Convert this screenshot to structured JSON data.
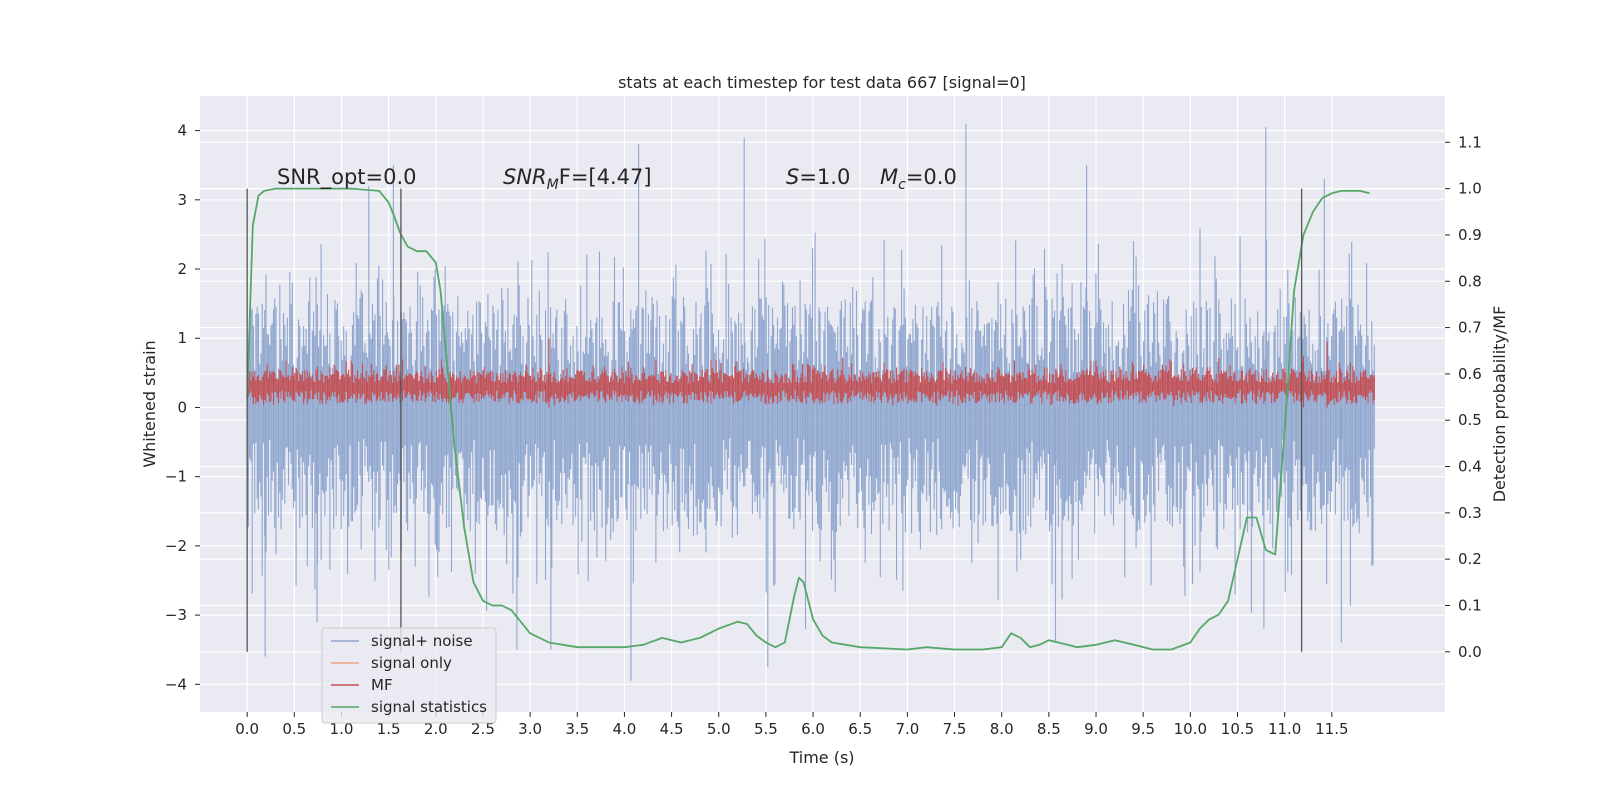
{
  "chart_data": {
    "type": "line",
    "title": "stats at each timestep for test data 667 [signal=0]",
    "xlabel": "Time (s)",
    "ylabel": "Whitened strain",
    "ylabel_right": "Detection probability/MF",
    "xlim": [
      -0.5,
      12.7
    ],
    "ylim": [
      -4.4,
      4.5
    ],
    "ylim_right": [
      -0.13,
      1.2
    ],
    "x_ticks": [
      "0.0",
      "0.5",
      "1.0",
      "1.5",
      "2.0",
      "2.5",
      "3.0",
      "3.5",
      "4.0",
      "4.5",
      "5.0",
      "5.5",
      "6.0",
      "6.5",
      "7.0",
      "7.5",
      "8.0",
      "8.5",
      "9.0",
      "9.5",
      "10.0",
      "10.5",
      "11.0",
      "11.5"
    ],
    "y_ticks": [
      "4",
      "3",
      "2",
      "1",
      "0",
      "−1",
      "−2",
      "−3",
      "−4"
    ],
    "y_ticks_right": [
      "1.1",
      "1.0",
      "0.9",
      "0.8",
      "0.7",
      "0.6",
      "0.5",
      "0.4",
      "0.3",
      "0.2",
      "0.1",
      "0.0"
    ],
    "grid": true,
    "legend_position": "lower-left",
    "annotations": {
      "snr_opt": "SNR_opt=0.0",
      "snr_mf_base": "SNR",
      "snr_mf_sub": "M",
      "snr_mf_tail": "F=[4.47]",
      "s_var": "S",
      "s_val": "=1.0",
      "mc_var": "M",
      "mc_sub": "c",
      "mc_val": "=0.0"
    },
    "vlines_x": [
      0.0,
      1.63,
      11.18
    ],
    "series": [
      {
        "name": "signal+ noise",
        "color": "#8fa6cf",
        "kind": "dense noise",
        "x_range": [
          0.0,
          11.95
        ],
        "band": [
          -1.8,
          1.6
        ],
        "peaks": [
          [
            0.19,
            -3.6
          ],
          [
            0.74,
            -3.1
          ],
          [
            1.29,
            3.2
          ],
          [
            1.55,
            3.5
          ],
          [
            2.86,
            -3.5
          ],
          [
            3.22,
            -3.5
          ],
          [
            4.07,
            -3.95
          ],
          [
            4.15,
            3.8
          ],
          [
            5.27,
            3.9
          ],
          [
            5.52,
            -3.75
          ],
          [
            5.92,
            -3.2
          ],
          [
            7.62,
            4.1
          ],
          [
            8.57,
            -3.4
          ],
          [
            8.9,
            3.5
          ],
          [
            10.78,
            -3.2
          ],
          [
            10.8,
            4.05
          ],
          [
            11.6,
            -3.4
          ],
          [
            11.42,
            3.3
          ]
        ]
      },
      {
        "name": "signal only",
        "color": "#e9a487",
        "kind": "legend only"
      },
      {
        "name": "MF",
        "color": "#c44e52",
        "kind": "dense noise",
        "x_range": [
          0.0,
          11.95
        ],
        "band": [
          0.05,
          0.55
        ],
        "peaks": [
          [
            3.2,
            1.0
          ],
          [
            11.45,
            0.95
          ],
          [
            11.2,
            0.75
          ]
        ]
      },
      {
        "name": "signal statistics",
        "color": "#55a868",
        "axis": "right",
        "x": [
          0.0,
          0.06,
          0.12,
          0.18,
          0.3,
          0.5,
          0.8,
          1.1,
          1.4,
          1.5,
          1.56,
          1.62,
          1.7,
          1.8,
          1.9,
          2.0,
          2.05,
          2.12,
          2.2,
          2.3,
          2.4,
          2.5,
          2.6,
          2.7,
          2.8,
          3.0,
          3.2,
          3.5,
          4.0,
          4.2,
          4.4,
          4.6,
          4.8,
          5.0,
          5.2,
          5.3,
          5.4,
          5.5,
          5.6,
          5.7,
          5.8,
          5.85,
          5.9,
          6.0,
          6.1,
          6.2,
          6.5,
          7.0,
          7.2,
          7.5,
          7.8,
          8.0,
          8.1,
          8.2,
          8.3,
          8.4,
          8.5,
          8.6,
          8.7,
          8.8,
          9.0,
          9.2,
          9.4,
          9.6,
          9.8,
          10.0,
          10.1,
          10.2,
          10.3,
          10.4,
          10.5,
          10.6,
          10.7,
          10.8,
          10.9,
          11.0,
          11.1,
          11.2,
          11.3,
          11.4,
          11.5,
          11.6,
          11.7,
          11.8,
          11.9
        ],
        "y": [
          0.55,
          0.92,
          0.985,
          0.995,
          1.0,
          1.0,
          1.0,
          1.0,
          0.995,
          0.97,
          0.94,
          0.905,
          0.875,
          0.865,
          0.865,
          0.84,
          0.78,
          0.62,
          0.44,
          0.27,
          0.15,
          0.11,
          0.1,
          0.1,
          0.09,
          0.04,
          0.02,
          0.01,
          0.01,
          0.015,
          0.03,
          0.02,
          0.03,
          0.05,
          0.065,
          0.06,
          0.035,
          0.02,
          0.01,
          0.02,
          0.12,
          0.16,
          0.15,
          0.07,
          0.035,
          0.02,
          0.01,
          0.005,
          0.01,
          0.005,
          0.005,
          0.01,
          0.04,
          0.03,
          0.01,
          0.015,
          0.025,
          0.02,
          0.015,
          0.01,
          0.015,
          0.025,
          0.015,
          0.005,
          0.005,
          0.02,
          0.05,
          0.07,
          0.08,
          0.11,
          0.2,
          0.29,
          0.29,
          0.22,
          0.21,
          0.48,
          0.78,
          0.9,
          0.95,
          0.98,
          0.99,
          0.995,
          0.995,
          0.995,
          0.99
        ]
      }
    ]
  }
}
